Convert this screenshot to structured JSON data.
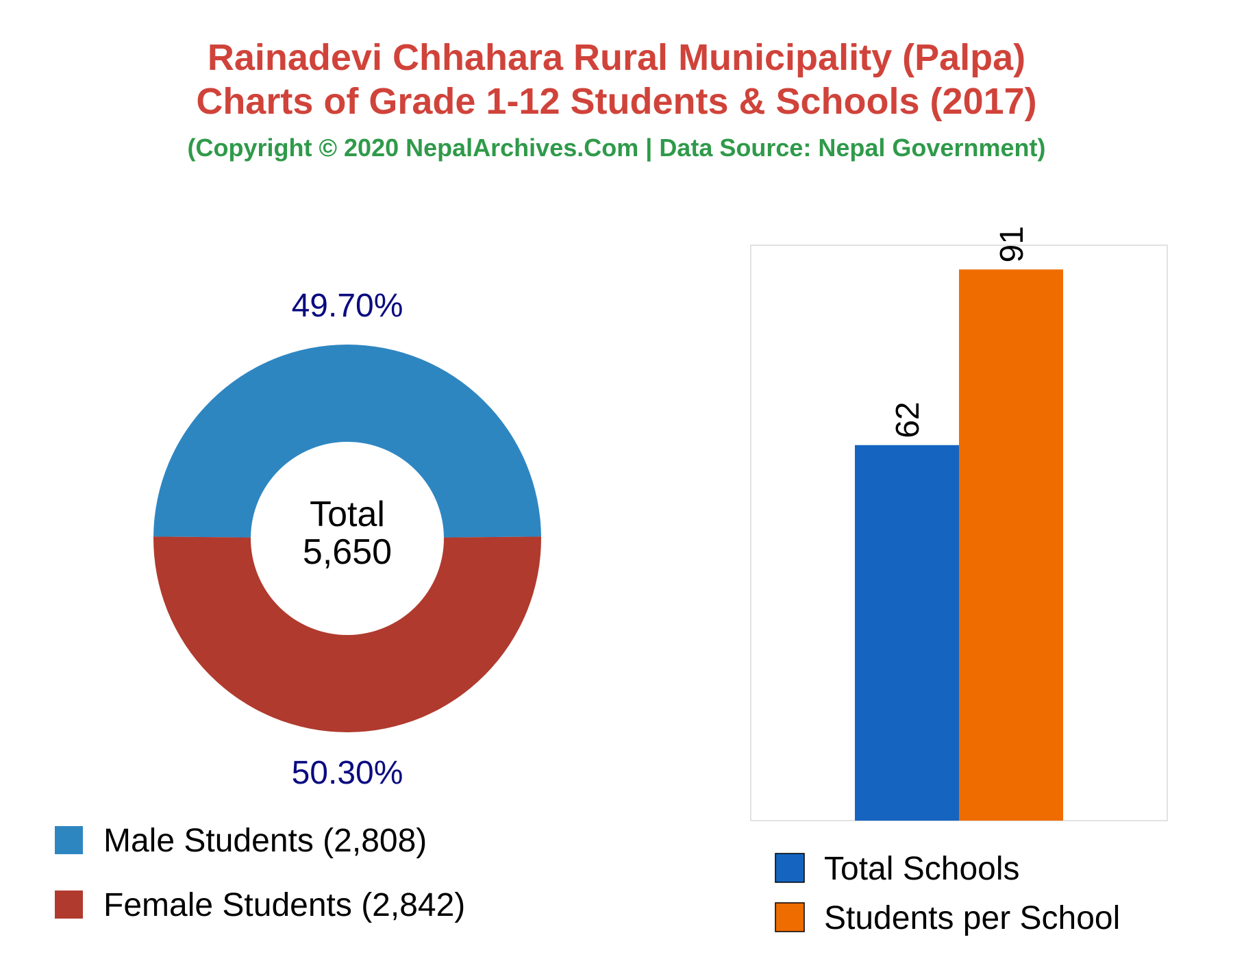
{
  "header": {
    "title_line1": "Rainadevi Chhahara Rural Municipality (Palpa)",
    "title_line2": "Charts of Grade 1-12 Students & Schools (2017)",
    "subtitle": "(Copyright © 2020 NepalArchives.Com | Data Source: Nepal Government)"
  },
  "chart_data": [
    {
      "type": "pie",
      "variant": "donut",
      "center_label": "Total",
      "center_value": "5,650",
      "slices": [
        {
          "name": "Male Students",
          "value": 2808,
          "percent_label": "49.70%",
          "legend_label": "Male Students (2,808)",
          "color": "#2e86c1"
        },
        {
          "name": "Female Students",
          "value": 2842,
          "percent_label": "50.30%",
          "legend_label": "Female Students (2,842)",
          "color": "#b03a2e"
        }
      ],
      "legend_placement": "bottom-left"
    },
    {
      "type": "bar",
      "series": [
        {
          "name": "Total Schools",
          "value": 62,
          "value_label": "62",
          "color": "#1565c0"
        },
        {
          "name": "Students per School",
          "value": 91,
          "value_label": "91",
          "color": "#ef6c00"
        }
      ],
      "ylim": [
        0,
        95
      ],
      "grid": false,
      "legend_placement": "bottom"
    }
  ]
}
